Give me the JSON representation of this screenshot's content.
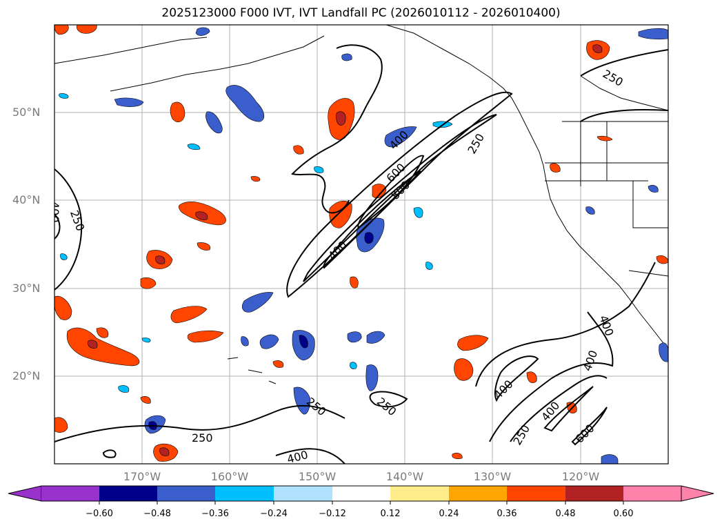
{
  "title": "2025123000 F000 IVT, IVT Landfall PC (2026010112 - 2026010400)",
  "lat_labels": [
    "50°N",
    "40°N",
    "30°N",
    "20°N"
  ],
  "lon_labels": [
    "170°W",
    "160°W",
    "150°W",
    "140°W",
    "130°W",
    "120°W"
  ],
  "contour_labels": [
    "250",
    "400",
    "600",
    "800"
  ],
  "colorbar": {
    "ticks": [
      "−0.60",
      "−0.48",
      "−0.36",
      "−0.24",
      "−0.12",
      "0.12",
      "0.24",
      "0.36",
      "0.48",
      "0.60"
    ],
    "colors": [
      "#9932cc",
      "#00008b",
      "#3a5fcd",
      "#00bfff",
      "#b0e2ff",
      "#ffffff",
      "#ffec8b",
      "#ffa500",
      "#ff4500",
      "#b22222",
      "#ff82ab"
    ]
  }
}
